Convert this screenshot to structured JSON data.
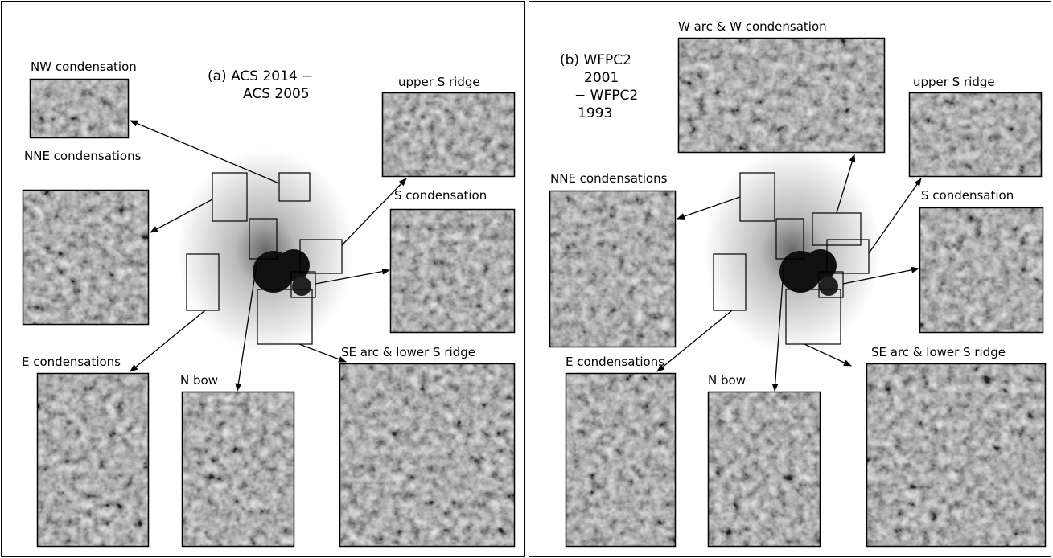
{
  "panels": [
    {
      "title_lines": [
        "(a) ACS 2014 −",
        "ACS 2005"
      ],
      "insets": [
        {
          "label": "NW condensation"
        },
        {
          "label": "NNE condensations"
        },
        {
          "label": "E condensations"
        },
        {
          "label": "N bow"
        },
        {
          "label": "SE arc & lower S ridge"
        },
        {
          "label": "S condensation"
        },
        {
          "label": "upper S ridge"
        }
      ]
    },
    {
      "title_lines": [
        "(b) WFPC2",
        "2001",
        "− WFPC2",
        "1993"
      ],
      "insets": [
        {
          "label": "W arc & W condensation"
        },
        {
          "label": "upper S ridge"
        },
        {
          "label": "NNE condensations"
        },
        {
          "label": "S condensation"
        },
        {
          "label": "E condensations"
        },
        {
          "label": "N bow"
        },
        {
          "label": "SE arc & lower S ridge"
        }
      ]
    }
  ]
}
